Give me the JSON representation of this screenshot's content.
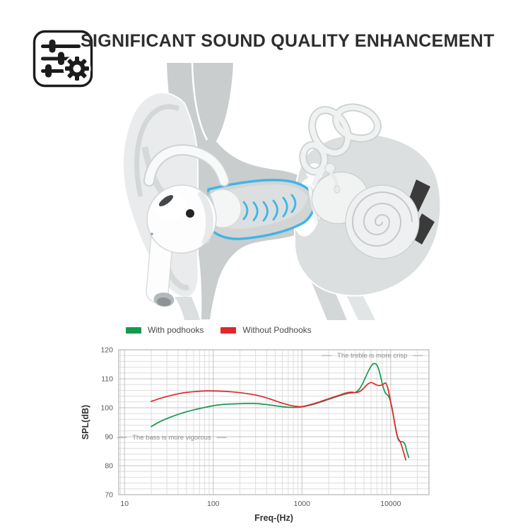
{
  "header": {
    "title": "SIGNIFICANT SOUND QUALITY ENHANCEMENT",
    "icon": "equalizer-sliders-icon"
  },
  "illustration": {
    "name": "ear-anatomy-cross-section-with-earbud",
    "accent_color": "#3fb5e8",
    "parts": [
      "outer-ear",
      "airpod-earbud",
      "ear-canal-sound-waves",
      "eardrum",
      "ossicles",
      "semicircular-canals",
      "cochlea"
    ]
  },
  "chart_data": {
    "type": "line",
    "x_scale": "log",
    "xlabel": "Freq-(Hz)",
    "ylabel": "SPL(dB)",
    "xlim": [
      8.6,
      27000
    ],
    "ylim": [
      70,
      120
    ],
    "xticks": [
      10,
      100,
      1000,
      10000
    ],
    "yticks": [
      70,
      80,
      90,
      100,
      110,
      120
    ],
    "y_minor_step": 2,
    "grid": true,
    "legend_position": "top",
    "series": [
      {
        "name": "With podhooks",
        "color": "#169a50",
        "points": [
          [
            20,
            93.5
          ],
          [
            25,
            95.2
          ],
          [
            32,
            96.6
          ],
          [
            40,
            97.7
          ],
          [
            50,
            98.6
          ],
          [
            63,
            99.4
          ],
          [
            80,
            100.1
          ],
          [
            100,
            100.7
          ],
          [
            125,
            101.1
          ],
          [
            160,
            101.3
          ],
          [
            200,
            101.4
          ],
          [
            250,
            101.5
          ],
          [
            320,
            101.4
          ],
          [
            400,
            101.1
          ],
          [
            500,
            100.7
          ],
          [
            630,
            100.3
          ],
          [
            800,
            100.1
          ],
          [
            1000,
            100.3
          ],
          [
            1250,
            100.9
          ],
          [
            1600,
            101.9
          ],
          [
            2000,
            102.9
          ],
          [
            2500,
            103.9
          ],
          [
            3150,
            104.8
          ],
          [
            3600,
            105.1
          ],
          [
            4000,
            105.3
          ],
          [
            4400,
            106.3
          ],
          [
            4800,
            108.2
          ],
          [
            5200,
            110.5
          ],
          [
            5600,
            112.6
          ],
          [
            6000,
            114.3
          ],
          [
            6400,
            115.2
          ],
          [
            6800,
            115.1
          ],
          [
            7200,
            113.9
          ],
          [
            7600,
            111.5
          ],
          [
            8000,
            108.6
          ],
          [
            8400,
            106.3
          ],
          [
            8800,
            104.9
          ],
          [
            9300,
            104.3
          ],
          [
            9800,
            102.9
          ],
          [
            10300,
            100.2
          ],
          [
            10800,
            96.8
          ],
          [
            11300,
            93.2
          ],
          [
            11800,
            90.4
          ],
          [
            12400,
            88.6
          ],
          [
            13000,
            88.3
          ],
          [
            13800,
            88.2
          ],
          [
            14500,
            87.4
          ],
          [
            15200,
            85.0
          ],
          [
            16000,
            82.8
          ]
        ]
      },
      {
        "name": "Without Podhooks",
        "color": "#e2262b",
        "points": [
          [
            20,
            102.2
          ],
          [
            25,
            103.2
          ],
          [
            32,
            104.1
          ],
          [
            40,
            104.8
          ],
          [
            50,
            105.3
          ],
          [
            63,
            105.6
          ],
          [
            80,
            105.8
          ],
          [
            100,
            105.8
          ],
          [
            125,
            105.7
          ],
          [
            160,
            105.5
          ],
          [
            200,
            105.2
          ],
          [
            250,
            104.8
          ],
          [
            320,
            104.2
          ],
          [
            400,
            103.4
          ],
          [
            500,
            102.4
          ],
          [
            630,
            101.4
          ],
          [
            800,
            100.6
          ],
          [
            1000,
            100.4
          ],
          [
            1250,
            101.1
          ],
          [
            1600,
            102.1
          ],
          [
            2000,
            103.1
          ],
          [
            2500,
            104.1
          ],
          [
            3150,
            105.1
          ],
          [
            3600,
            105.4
          ],
          [
            4000,
            105.2
          ],
          [
            4400,
            105.5
          ],
          [
            4800,
            106.3
          ],
          [
            5200,
            107.4
          ],
          [
            5600,
            108.3
          ],
          [
            6000,
            108.7
          ],
          [
            6400,
            108.4
          ],
          [
            6800,
            108.0
          ],
          [
            7200,
            107.7
          ],
          [
            7600,
            107.7
          ],
          [
            8000,
            107.9
          ],
          [
            8400,
            108.3
          ],
          [
            8800,
            108.5
          ],
          [
            9200,
            107.2
          ],
          [
            9600,
            104.8
          ],
          [
            10000,
            102.0
          ],
          [
            10500,
            98.8
          ],
          [
            11000,
            95.3
          ],
          [
            11500,
            92.2
          ],
          [
            12000,
            89.8
          ],
          [
            12500,
            88.8
          ],
          [
            13000,
            87.8
          ],
          [
            13600,
            85.9
          ],
          [
            14200,
            83.9
          ],
          [
            14800,
            82.0
          ]
        ]
      }
    ],
    "annotations": [
      {
        "text": "The bass is more vigorous",
        "freq": 34,
        "db": 89.7
      },
      {
        "text": "The treble is more crisp",
        "freq": 6200,
        "db": 118
      }
    ]
  }
}
